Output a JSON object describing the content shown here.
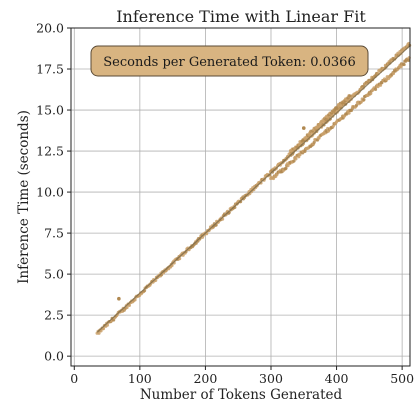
{
  "chart_data": {
    "type": "scatter",
    "title": "Inference Time with Linear Fit",
    "xlabel": "Number of Tokens Generated",
    "ylabel": "Inference Time (seconds)",
    "xlim": [
      -5,
      512
    ],
    "ylim": [
      -0.6,
      20.0
    ],
    "xticks": [
      0,
      100,
      200,
      300,
      400,
      500
    ],
    "yticks": [
      0.0,
      2.5,
      5.0,
      7.5,
      10.0,
      12.5,
      15.0,
      17.5,
      20.0
    ],
    "xtick_labels": [
      "0",
      "100",
      "200",
      "300",
      "400",
      "500"
    ],
    "ytick_labels": [
      "0.0",
      "2.5",
      "5.0",
      "7.5",
      "10.0",
      "12.5",
      "15.0",
      "17.5",
      "20.0"
    ],
    "grid": true,
    "annotation": {
      "text": "Seconds per Generated Token: 0.0366",
      "placement": "top-left"
    },
    "fit_line": {
      "slope": 0.0366,
      "intercept": 0.18,
      "x_range": [
        35,
        512
      ],
      "color": "#7a6a4a"
    },
    "series": [
      {
        "points_description_free": true,
        "color": "#c9a06a",
        "bands": [
          {
            "x_start": 35,
            "x_end": 512,
            "slope": 0.0371,
            "intercept": 0.07,
            "spread": 0.1
          },
          {
            "x_start": 300,
            "x_end": 512,
            "slope": 0.035,
            "intercept": 0.25,
            "spread": 0.1
          },
          {
            "x_start": 330,
            "x_end": 420,
            "slope": 0.0382,
            "intercept": -0.15,
            "spread": 0.08
          }
        ],
        "outliers": [
          [
            68,
            3.5
          ],
          [
            350,
            13.9
          ]
        ]
      }
    ],
    "colors": {
      "points": "#c9a06a",
      "points_dark": "#b08850",
      "annotation_fill": "#d8b481",
      "annotation_edge": "#5a4a35",
      "grid": "#b0b0b0",
      "axes": "#222222"
    }
  }
}
